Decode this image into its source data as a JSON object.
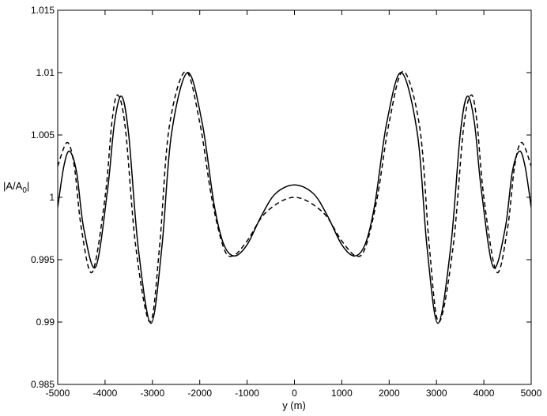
{
  "chart_data": {
    "type": "line",
    "xlabel": "y (m)",
    "ylabel": [
      "|A/A",
      "0",
      "|"
    ],
    "xlim": [
      -5000,
      5000
    ],
    "ylim": [
      0.985,
      1.015
    ],
    "xticks": [
      -5000,
      -4000,
      -3000,
      -2000,
      -1000,
      0,
      1000,
      2000,
      3000,
      4000,
      5000
    ],
    "yticks": [
      0.985,
      0.99,
      0.995,
      1,
      1.005,
      1.01,
      1.015
    ],
    "grid": false,
    "series": [
      {
        "color": "#000000",
        "dash": false,
        "x": [
          -5000,
          -4870,
          -4750,
          -4600,
          -4450,
          -4200,
          -3950,
          -3800,
          -3650,
          -3500,
          -3300,
          -3030,
          -2800,
          -2600,
          -2260,
          -1950,
          -1700,
          -1500,
          -1270,
          -1000,
          -700,
          -400,
          0,
          400,
          700,
          1000,
          1270,
          1500,
          1700,
          1950,
          2260,
          2600,
          2800,
          3030,
          3300,
          3500,
          3650,
          3800,
          3950,
          4200,
          4450,
          4600,
          4750,
          4870,
          5000
        ],
        "values": [
          0.9992,
          1.0025,
          1.0037,
          1.002,
          0.9975,
          0.9944,
          1.0005,
          1.006,
          1.0081,
          1.005,
          0.996,
          0.9899,
          0.996,
          1.005,
          1.01,
          1.006,
          0.9995,
          0.9963,
          0.9953,
          0.9962,
          0.9985,
          1.0003,
          1.001,
          1.0003,
          0.9985,
          0.9962,
          0.9953,
          0.9963,
          0.9995,
          1.006,
          1.01,
          1.005,
          0.996,
          0.9899,
          0.996,
          1.005,
          1.0081,
          1.006,
          1.0005,
          0.9944,
          0.9975,
          1.002,
          1.0037,
          1.0025,
          0.9992
        ]
      },
      {
        "color": "#000000",
        "dash": true,
        "x": [
          -5000,
          -4800,
          -4650,
          -4500,
          -4270,
          -4000,
          -3850,
          -3730,
          -3570,
          -3350,
          -3050,
          -2850,
          -2650,
          -2300,
          -2000,
          -1750,
          -1500,
          -1300,
          -1000,
          -600,
          0,
          600,
          1000,
          1300,
          1500,
          1750,
          2000,
          2300,
          2650,
          2850,
          3050,
          3350,
          3570,
          3730,
          3850,
          4000,
          4270,
          4500,
          4650,
          4800,
          5000
        ],
        "values": [
          1.0025,
          1.0044,
          1.0025,
          0.9975,
          0.994,
          1.0,
          1.0062,
          1.0082,
          1.0055,
          0.996,
          0.99,
          0.996,
          1.0055,
          1.0101,
          1.006,
          1.0,
          0.996,
          0.9953,
          0.9965,
          0.9988,
          1.0,
          0.9988,
          0.9965,
          0.9953,
          0.996,
          1.0,
          1.006,
          1.0101,
          1.0055,
          0.996,
          0.99,
          0.996,
          1.0055,
          1.0082,
          1.0062,
          1.0,
          0.994,
          0.9975,
          1.0025,
          1.0044,
          1.0025
        ]
      }
    ]
  }
}
